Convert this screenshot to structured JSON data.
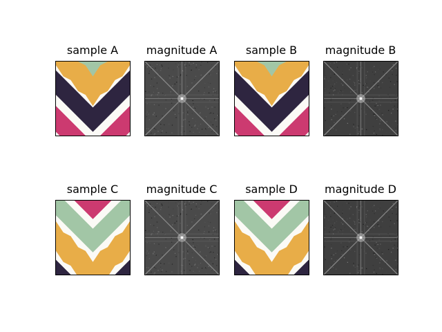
{
  "figure": {
    "panels": [
      {
        "title": "sample A",
        "kind": "pattern",
        "variant": "A"
      },
      {
        "title": "magnitude A",
        "kind": "spectrum",
        "variant": "A"
      },
      {
        "title": "sample B",
        "kind": "pattern",
        "variant": "A"
      },
      {
        "title": "magnitude B",
        "kind": "spectrum",
        "variant": "B"
      },
      {
        "title": "sample C",
        "kind": "pattern",
        "variant": "C"
      },
      {
        "title": "magnitude C",
        "kind": "spectrum",
        "variant": "A"
      },
      {
        "title": "sample D",
        "kind": "pattern",
        "variant": "C"
      },
      {
        "title": "magnitude D",
        "kind": "spectrum",
        "variant": "B"
      }
    ],
    "colors": {
      "dark": "#2e2540",
      "mustard": "#e8ad48",
      "sage": "#a2c6a6",
      "crimson": "#cc3a70",
      "ivory": "#fbfaf6",
      "spectrum_bg": "#4a4a4a"
    }
  }
}
